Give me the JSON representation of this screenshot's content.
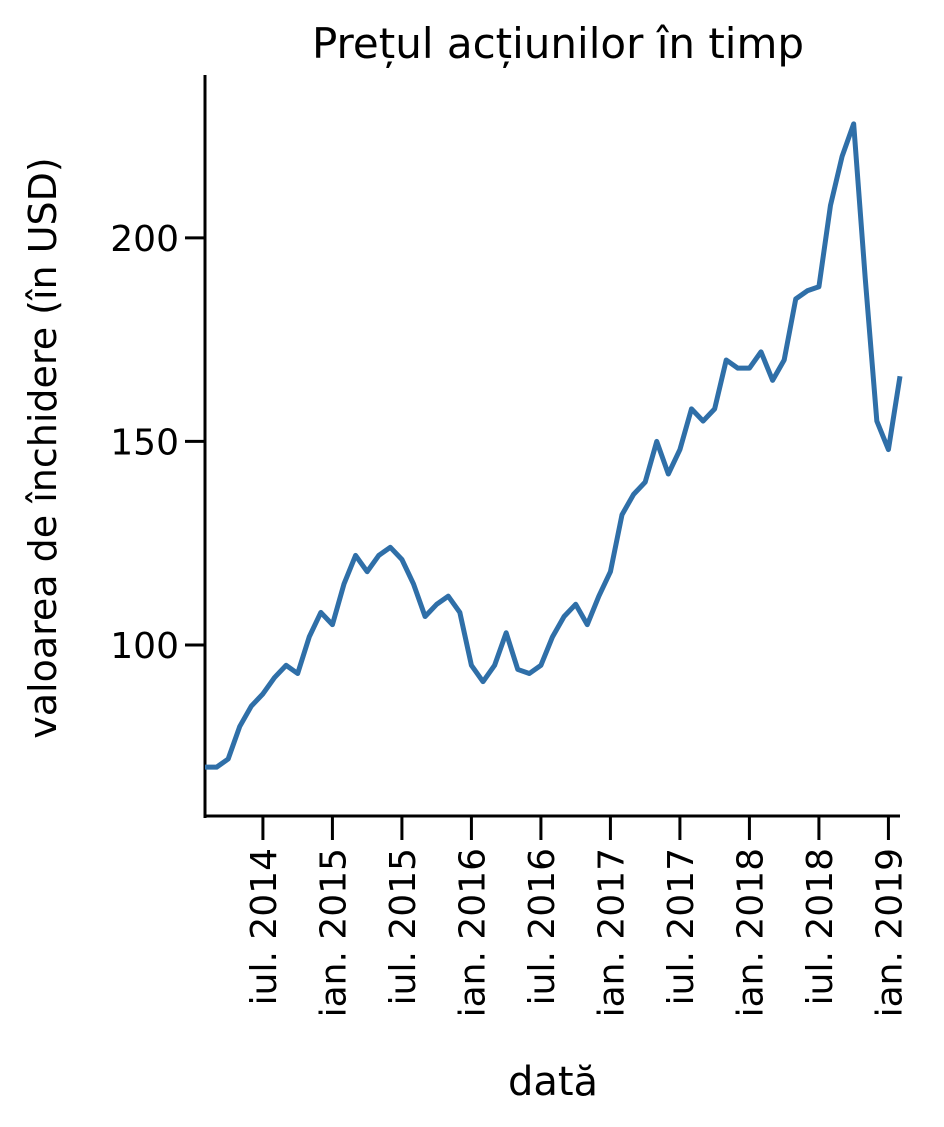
{
  "chart_data": {
    "type": "line",
    "title": "Prețul acțiunilor în timp",
    "xlabel": "dată",
    "ylabel": "valoarea de închidere (în USD)",
    "x": [
      "2014-02",
      "2014-03",
      "2014-04",
      "2014-05",
      "2014-06",
      "2014-07",
      "2014-08",
      "2014-09",
      "2014-10",
      "2014-11",
      "2014-12",
      "2015-01",
      "2015-02",
      "2015-03",
      "2015-04",
      "2015-05",
      "2015-06",
      "2015-07",
      "2015-08",
      "2015-09",
      "2015-10",
      "2015-11",
      "2015-12",
      "2016-01",
      "2016-02",
      "2016-03",
      "2016-04",
      "2016-05",
      "2016-06",
      "2016-07",
      "2016-08",
      "2016-09",
      "2016-10",
      "2016-11",
      "2016-12",
      "2017-01",
      "2017-02",
      "2017-03",
      "2017-04",
      "2017-05",
      "2017-06",
      "2017-07",
      "2017-08",
      "2017-09",
      "2017-10",
      "2017-11",
      "2017-12",
      "2018-01",
      "2018-02",
      "2018-03",
      "2018-04",
      "2018-05",
      "2018-06",
      "2018-07",
      "2018-08",
      "2018-09",
      "2018-10",
      "2018-11",
      "2018-12",
      "2019-01",
      "2019-02"
    ],
    "series": [
      {
        "name": "valoarea de închidere",
        "color": "#2f6fa8",
        "values": [
          70,
          70,
          72,
          80,
          85,
          88,
          92,
          95,
          93,
          102,
          108,
          105,
          115,
          122,
          118,
          122,
          124,
          121,
          115,
          107,
          110,
          112,
          108,
          95,
          91,
          95,
          103,
          94,
          93,
          95,
          102,
          107,
          110,
          105,
          112,
          118,
          132,
          137,
          140,
          150,
          142,
          148,
          158,
          155,
          158,
          170,
          168,
          168,
          172,
          165,
          170,
          185,
          187,
          188,
          208,
          220,
          228,
          190,
          155,
          148,
          166
        ]
      }
    ],
    "xlim": [
      "2014-02",
      "2019-02"
    ],
    "xticks": [
      {
        "value": "2014-07",
        "label": "iul. 2014"
      },
      {
        "value": "2015-01",
        "label": "ian. 2015"
      },
      {
        "value": "2015-07",
        "label": "iul. 2015"
      },
      {
        "value": "2016-01",
        "label": "ian. 2016"
      },
      {
        "value": "2016-07",
        "label": "iul. 2016"
      },
      {
        "value": "2017-01",
        "label": "ian. 2017"
      },
      {
        "value": "2017-07",
        "label": "iul. 2017"
      },
      {
        "value": "2018-01",
        "label": "ian. 2018"
      },
      {
        "value": "2018-07",
        "label": "iul. 2018"
      },
      {
        "value": "2019-01",
        "label": "ian. 2019"
      }
    ],
    "ylim": [
      58,
      240
    ],
    "yticks": [
      100,
      150,
      200
    ],
    "grid": false
  }
}
